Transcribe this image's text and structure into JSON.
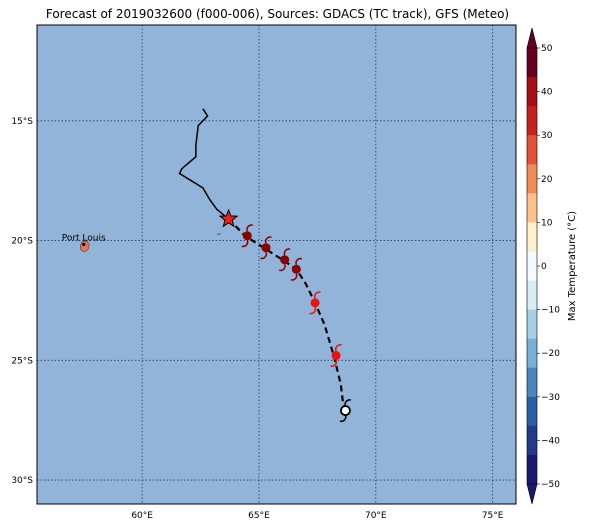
{
  "title": "Forecast of 2019032600 (f000-006), Sources: GDACS (TC track), GFS (Meteo)",
  "map": {
    "lon_range": [
      55.5,
      76
    ],
    "lat_range": [
      -31,
      -11
    ],
    "ocean_color": "#92b4d8",
    "grid": true,
    "x_ticks": [
      {
        "v": 60,
        "label": "60°E"
      },
      {
        "v": 65,
        "label": "65°E"
      },
      {
        "v": 70,
        "label": "70°E"
      },
      {
        "v": 75,
        "label": "75°E"
      }
    ],
    "y_ticks": [
      {
        "v": -15,
        "label": "15°S"
      },
      {
        "v": -20,
        "label": "20°S"
      },
      {
        "v": -25,
        "label": "25°S"
      },
      {
        "v": -30,
        "label": "30°S"
      }
    ]
  },
  "places": [
    {
      "name": "Port Louis",
      "lon": 57.5,
      "lat": -20.16
    }
  ],
  "islands": [
    {
      "name": "mauritius",
      "lon": 57.55,
      "lat": -20.25,
      "color": "#e8704c"
    }
  ],
  "track_past": [
    [
      62.6,
      -14.5
    ],
    [
      62.8,
      -14.8
    ],
    [
      62.4,
      -15.2
    ],
    [
      62.3,
      -16.0
    ],
    [
      62.3,
      -16.5
    ],
    [
      61.7,
      -17.0
    ],
    [
      61.6,
      -17.2
    ],
    [
      62.1,
      -17.5
    ],
    [
      62.6,
      -17.8
    ],
    [
      62.9,
      -18.3
    ],
    [
      63.2,
      -18.7
    ],
    [
      63.7,
      -19.1
    ]
  ],
  "track_forecast": [
    [
      63.7,
      -19.1
    ],
    [
      64.4,
      -19.8
    ],
    [
      65.2,
      -20.3
    ],
    [
      66.0,
      -20.8
    ],
    [
      66.6,
      -21.2
    ],
    [
      67.0,
      -21.8
    ],
    [
      67.4,
      -22.6
    ],
    [
      67.8,
      -23.5
    ],
    [
      68.2,
      -24.8
    ],
    [
      68.5,
      -26.0
    ],
    [
      68.6,
      -26.8
    ],
    [
      68.7,
      -27.1
    ]
  ],
  "storm_current": {
    "lon": 63.7,
    "lat": -19.1,
    "color": "#ee2222"
  },
  "storm_forecast": [
    {
      "lon": 64.5,
      "lat": -19.8,
      "color": "#8b0000"
    },
    {
      "lon": 65.3,
      "lat": -20.3,
      "color": "#8b0000"
    },
    {
      "lon": 66.1,
      "lat": -20.8,
      "color": "#8b0000"
    },
    {
      "lon": 66.6,
      "lat": -21.2,
      "color": "#8b0000"
    },
    {
      "lon": 67.4,
      "lat": -22.6,
      "color": "#ee1111"
    },
    {
      "lon": 68.3,
      "lat": -24.8,
      "color": "#ee1111"
    },
    {
      "lon": 68.7,
      "lat": -27.1,
      "color": "#ffffff"
    }
  ],
  "colorbar": {
    "label": "Max Temperature (°C)",
    "ticks": [
      50,
      40,
      30,
      20,
      10,
      0,
      -10,
      -20,
      -30,
      -40,
      -50
    ],
    "colors_top_to_bottom": [
      "#67001f",
      "#a50f15",
      "#c8201e",
      "#e0523a",
      "#f28c55",
      "#fdc28a",
      "#fff0cc",
      "#f4fbff",
      "#d6edf6",
      "#a7d0e4",
      "#78b0d4",
      "#4b86bc",
      "#2b5ea7",
      "#233b8a",
      "#1a1a6e"
    ]
  }
}
